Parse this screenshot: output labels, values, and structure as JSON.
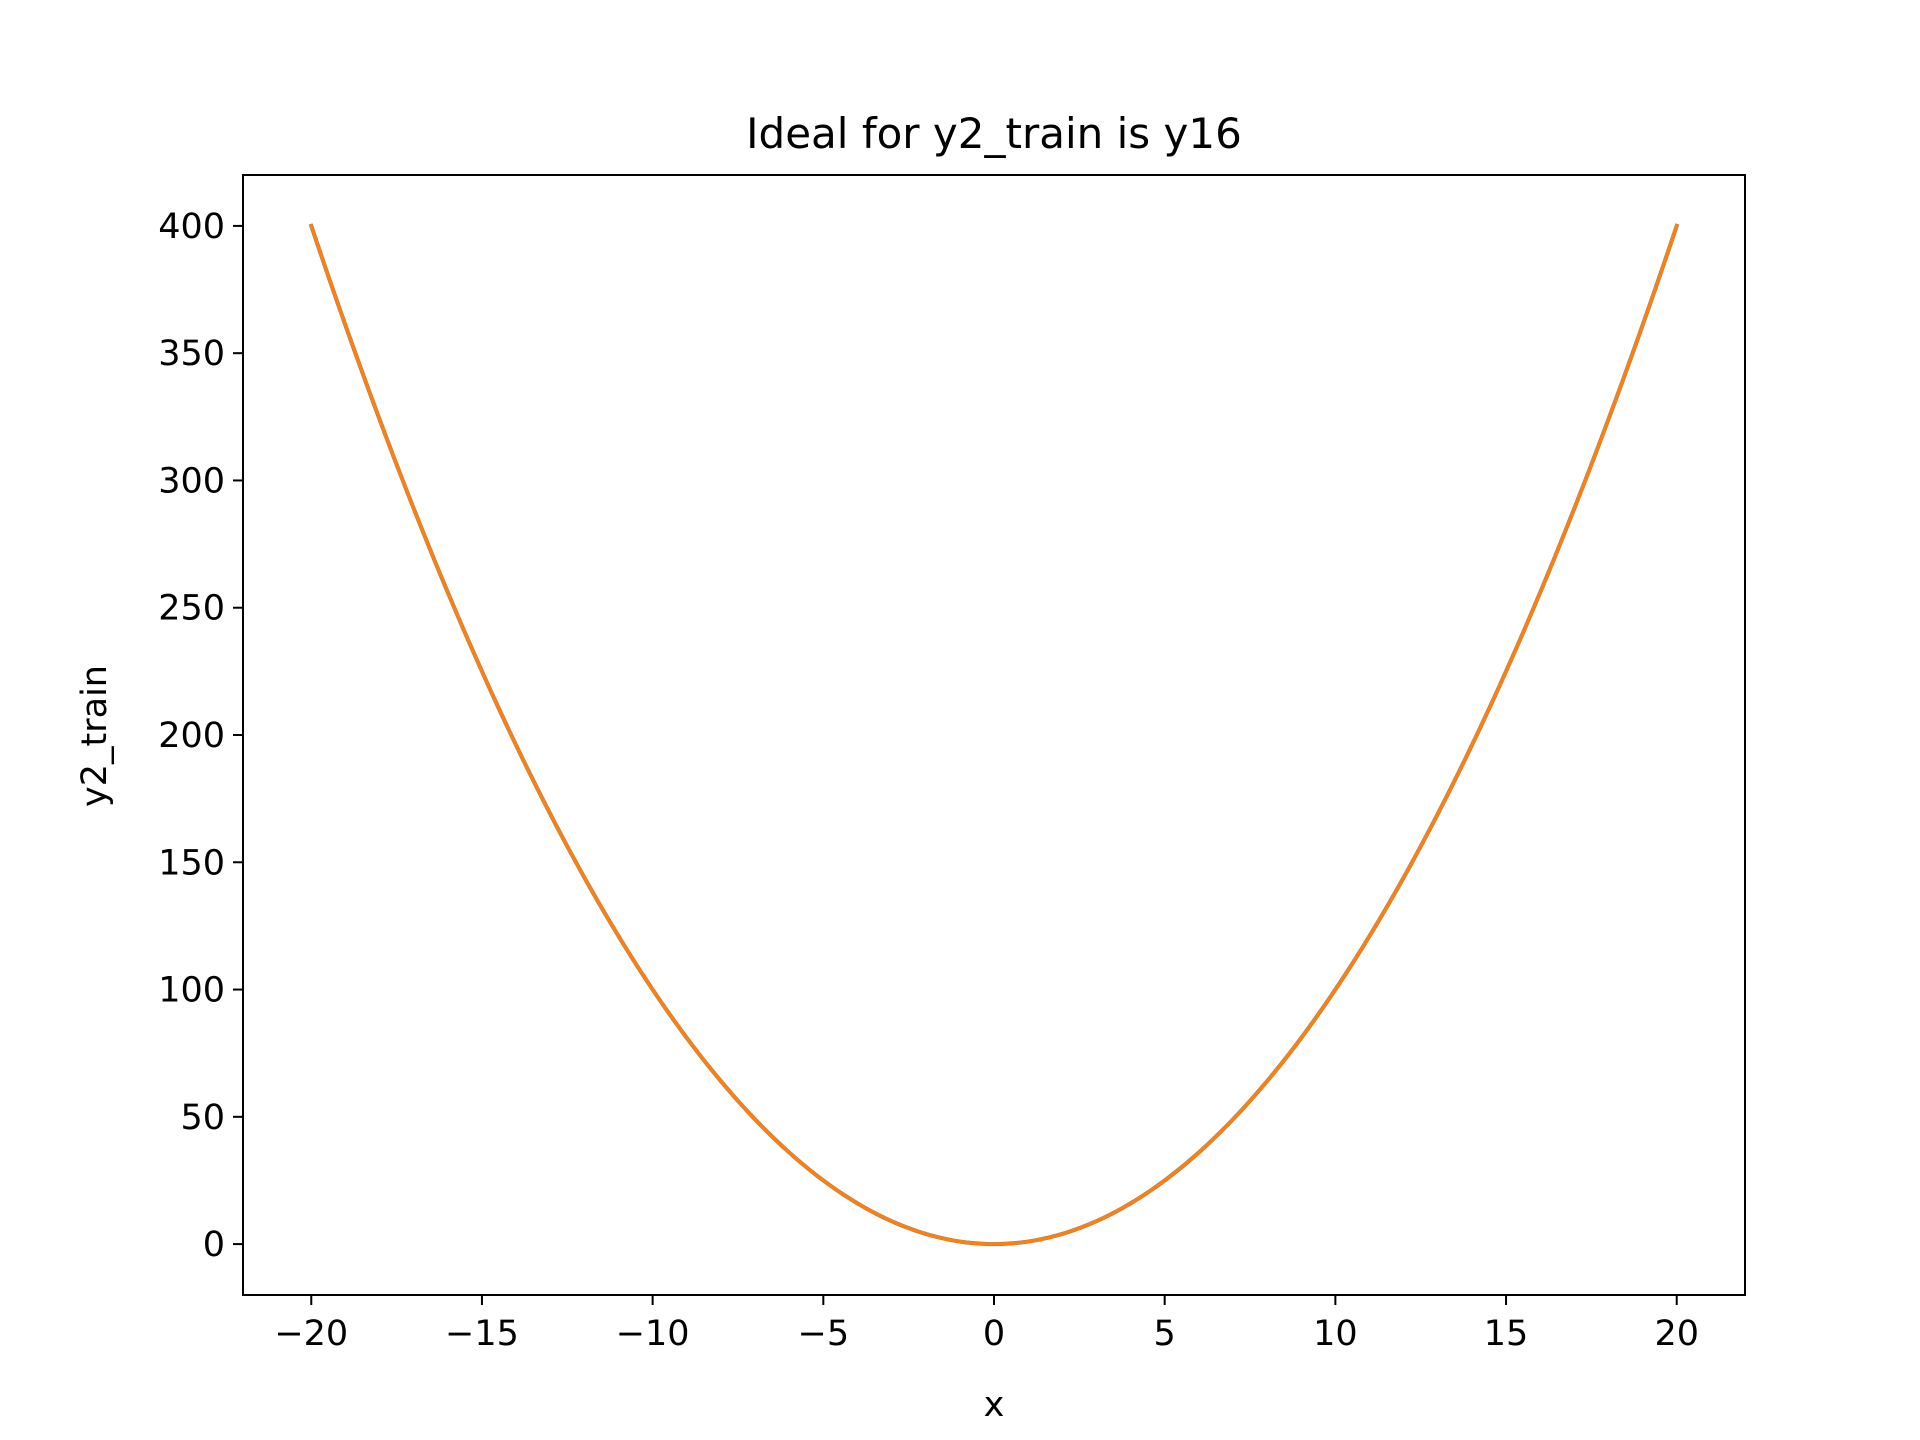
{
  "chart_data": {
    "type": "line",
    "title": "Ideal for y2_train is y16",
    "xlabel": "x",
    "ylabel": "y2_train",
    "xlim": [
      -22,
      22
    ],
    "ylim": [
      -20,
      420
    ],
    "xticks": [
      -20,
      -15,
      -10,
      -5,
      0,
      5,
      10,
      15,
      20
    ],
    "xtick_labels": [
      "−20",
      "−15",
      "−10",
      "−5",
      "0",
      "5",
      "10",
      "15",
      "20"
    ],
    "yticks": [
      0,
      50,
      100,
      150,
      200,
      250,
      300,
      350,
      400
    ],
    "ytick_labels": [
      "0",
      "50",
      "100",
      "150",
      "200",
      "250",
      "300",
      "350",
      "400"
    ],
    "grid": false,
    "series": [
      {
        "color": "#1f77b4",
        "x": [
          -20,
          -18,
          -16,
          -14,
          -12,
          -10,
          -8,
          -6,
          -4,
          -2,
          0,
          2,
          4,
          6,
          8,
          10,
          12,
          14,
          16,
          18,
          20
        ],
        "values": [
          400,
          324,
          256,
          196,
          144,
          100,
          64,
          36,
          16,
          4,
          0,
          4,
          16,
          36,
          64,
          100,
          144,
          196,
          256,
          324,
          400
        ]
      },
      {
        "color": "#ff7f0e",
        "x": [
          -20,
          -18,
          -16,
          -14,
          -12,
          -10,
          -8,
          -6,
          -4,
          -2,
          0,
          2,
          4,
          6,
          8,
          10,
          12,
          14,
          16,
          18,
          20
        ],
        "values": [
          400,
          324,
          256,
          196,
          144,
          100,
          64,
          36,
          16,
          4,
          0,
          4,
          16,
          36,
          64,
          100,
          144,
          196,
          256,
          324,
          400
        ]
      }
    ]
  }
}
